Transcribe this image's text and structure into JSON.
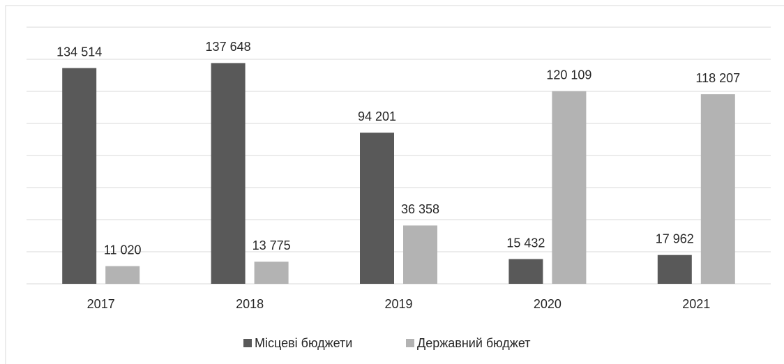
{
  "chart_data": {
    "type": "bar",
    "categories": [
      "2017",
      "2018",
      "2019",
      "2020",
      "2021"
    ],
    "series": [
      {
        "name": "Місцеві бюджети",
        "color": "#595959",
        "values": [
          134514,
          137648,
          94201,
          15432,
          17962
        ],
        "value_labels": [
          "134 514",
          "137 648",
          "94 201",
          "15 432",
          "17 962"
        ]
      },
      {
        "name": "Державний бюджет",
        "color": "#b3b3b3",
        "values": [
          11020,
          13775,
          36358,
          120109,
          118207
        ],
        "value_labels": [
          "11 020",
          "13 775",
          "36 358",
          "120 109",
          "118 207"
        ]
      }
    ],
    "ylim": [
      0,
      160000
    ],
    "yticks": [
      0,
      20000,
      40000,
      60000,
      80000,
      100000,
      120000,
      140000,
      160000
    ],
    "grid": true,
    "legend": "bottom"
  }
}
